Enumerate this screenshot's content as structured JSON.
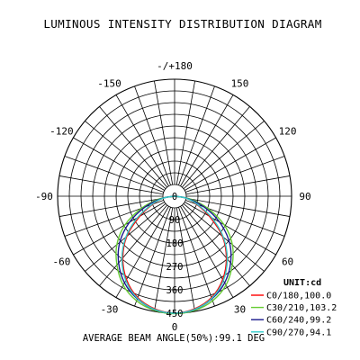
{
  "chart_data": {
    "type": "polar",
    "title": "LUMINOUS INTENSITY DISTRIBUTION DIAGRAM",
    "unit_label": "UNIT:cd",
    "footer": "AVERAGE BEAM ANGLE(50%):99.1 DEG",
    "angle_labels": [
      {
        "text": "0",
        "angle": 0
      },
      {
        "text": "30",
        "angle": 30
      },
      {
        "text": "60",
        "angle": 60
      },
      {
        "text": "90",
        "angle": 90
      },
      {
        "text": "120",
        "angle": 120
      },
      {
        "text": "150",
        "angle": 150
      },
      {
        "text": "-/+180",
        "angle": 180
      },
      {
        "text": "-150",
        "angle": -150
      },
      {
        "text": "-120",
        "angle": -120
      },
      {
        "text": "-90",
        "angle": -90
      },
      {
        "text": "-60",
        "angle": -60
      },
      {
        "text": "-30",
        "angle": -30
      }
    ],
    "radial_labels": [
      {
        "text": "0",
        "value": 0
      },
      {
        "text": "90",
        "value": 90
      },
      {
        "text": "180",
        "value": 180
      },
      {
        "text": "270",
        "value": 270
      },
      {
        "text": "360",
        "value": 360
      },
      {
        "text": "450",
        "value": 450
      }
    ],
    "radial_max": 450,
    "ring_step": 45,
    "spoke_step_deg": 10,
    "series": [
      {
        "name": "C0/180,100.0",
        "color": "#ff0000",
        "points": [
          [
            -90,
            0
          ],
          [
            -80,
            45
          ],
          [
            -70,
            90
          ],
          [
            -60,
            155
          ],
          [
            -50,
            240
          ],
          [
            -40,
            310
          ],
          [
            -30,
            370
          ],
          [
            -20,
            415
          ],
          [
            -10,
            440
          ],
          [
            0,
            450
          ],
          [
            10,
            440
          ],
          [
            20,
            415
          ],
          [
            30,
            370
          ],
          [
            40,
            310
          ],
          [
            50,
            240
          ],
          [
            60,
            155
          ],
          [
            70,
            90
          ],
          [
            80,
            45
          ],
          [
            90,
            0
          ]
        ]
      },
      {
        "name": "C30/210,103.2",
        "color": "#66cc33",
        "points": [
          [
            -90,
            0
          ],
          [
            -80,
            60
          ],
          [
            -70,
            135
          ],
          [
            -60,
            220
          ],
          [
            -50,
            290
          ],
          [
            -40,
            345
          ],
          [
            -30,
            395
          ],
          [
            -20,
            428
          ],
          [
            -10,
            446
          ],
          [
            0,
            452
          ],
          [
            10,
            446
          ],
          [
            20,
            428
          ],
          [
            30,
            395
          ],
          [
            40,
            345
          ],
          [
            50,
            290
          ],
          [
            60,
            220
          ],
          [
            70,
            135
          ],
          [
            80,
            60
          ],
          [
            90,
            0
          ]
        ]
      },
      {
        "name": "C60/240,99.2",
        "color": "#1a1a8c",
        "points": [
          [
            -90,
            0
          ],
          [
            -80,
            50
          ],
          [
            -70,
            120
          ],
          [
            -60,
            200
          ],
          [
            -50,
            275
          ],
          [
            -40,
            335
          ],
          [
            -30,
            385
          ],
          [
            -20,
            420
          ],
          [
            -10,
            443
          ],
          [
            0,
            450
          ],
          [
            10,
            443
          ],
          [
            20,
            420
          ],
          [
            30,
            385
          ],
          [
            40,
            335
          ],
          [
            50,
            275
          ],
          [
            60,
            200
          ],
          [
            70,
            120
          ],
          [
            80,
            50
          ],
          [
            90,
            0
          ]
        ]
      },
      {
        "name": "C90/270,94.1",
        "color": "#33cccc",
        "points": [
          [
            -90,
            0
          ],
          [
            -80,
            45
          ],
          [
            -70,
            95
          ],
          [
            -60,
            165
          ],
          [
            -50,
            245
          ],
          [
            -40,
            315
          ],
          [
            -30,
            375
          ],
          [
            -20,
            418
          ],
          [
            -10,
            442
          ],
          [
            0,
            450
          ],
          [
            10,
            442
          ],
          [
            20,
            418
          ],
          [
            30,
            375
          ],
          [
            40,
            315
          ],
          [
            50,
            245
          ],
          [
            60,
            165
          ],
          [
            70,
            95
          ],
          [
            80,
            45
          ],
          [
            90,
            0
          ]
        ]
      }
    ]
  }
}
